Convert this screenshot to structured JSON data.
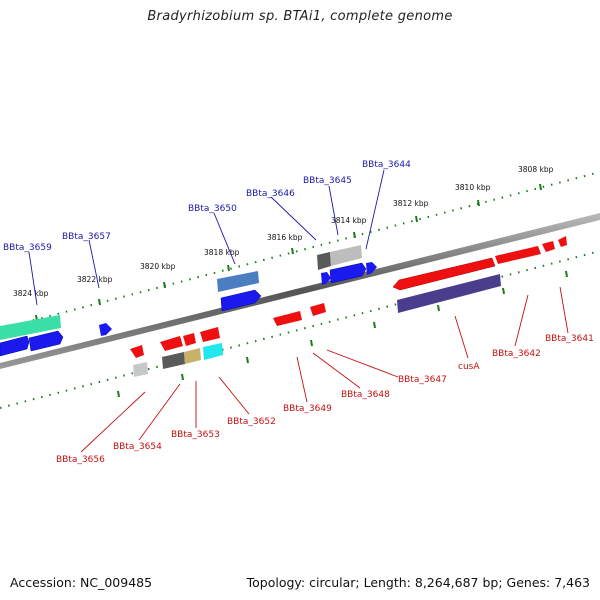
{
  "title": "Bradyrhizobium sp. BTAi1, complete genome",
  "footer": {
    "accession": "Accession: NC_009485",
    "stats": "Topology: circular; Length: 8,264,687 bp; Genes: 7,463"
  },
  "scale_labels": [
    "3808 kbp",
    "3810 kbp",
    "3812 kbp",
    "3814 kbp",
    "3816 kbp",
    "3818 kbp",
    "3820 kbp",
    "3822 kbp",
    "3824 kbp"
  ],
  "gene_labels": {
    "top": [
      "BBta_3644",
      "BBta_3645",
      "BBta_3646",
      "BBta_3650",
      "BBta_3657",
      "BBta_3659"
    ],
    "bottom": [
      "BBta_3641",
      "BBta_3642",
      "cusA",
      "BBta_3647",
      "BBta_3648",
      "BBta_3649",
      "BBta_3652",
      "BBta_3653",
      "BBta_3654",
      "BBta_3656"
    ]
  },
  "colors": {
    "forward_gene": "#1010ee",
    "reverse_gene": "#ee1010",
    "top_label": "#1a1aa8",
    "bottom_label": "#c41010",
    "backbone": "#7a7a7a",
    "tick": "#1e7a1e"
  }
}
